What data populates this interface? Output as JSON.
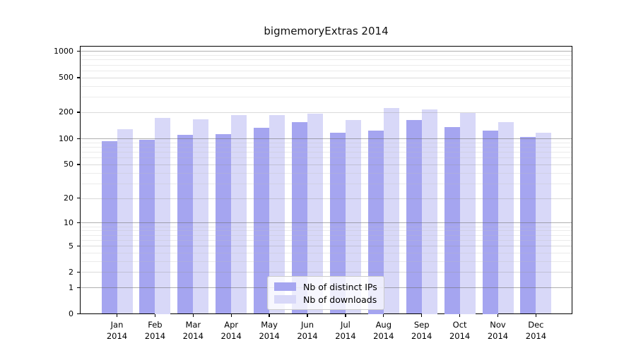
{
  "chart_data": {
    "type": "bar",
    "title": "bigmemoryExtras 2014",
    "xlabel": "",
    "ylabel": "",
    "x_sublabel_year": "2014",
    "categories": [
      "Jan",
      "Feb",
      "Mar",
      "Apr",
      "May",
      "Jun",
      "Jul",
      "Aug",
      "Sep",
      "Oct",
      "Nov",
      "Dec"
    ],
    "series": [
      {
        "name": "Nb of distinct IPs",
        "color": "#a5a5f0",
        "values": [
          93,
          97,
          110,
          112,
          133,
          154,
          117,
          124,
          162,
          136,
          124,
          103
        ]
      },
      {
        "name": "Nb of downloads",
        "color": "#d8d8f8",
        "values": [
          128,
          172,
          165,
          186,
          184,
          193,
          162,
          224,
          215,
          196,
          153,
          117
        ]
      }
    ],
    "yscale": "log10(x+1)",
    "ylim": [
      0,
      1000
    ],
    "yticks": [
      0,
      1,
      2,
      5,
      10,
      20,
      50,
      100,
      200,
      500,
      1000
    ],
    "major_gridline_ticks": [
      1,
      10,
      100,
      1000
    ],
    "minor_gridline_ticks": [
      3,
      4,
      6,
      7,
      8,
      9,
      30,
      40,
      60,
      70,
      80,
      90,
      300,
      400,
      600,
      700,
      800,
      900
    ],
    "grid": true,
    "grid_over_bars": true,
    "legend_position": "lower center",
    "frame": "full box, black spines",
    "background_color": "#ffffff"
  }
}
